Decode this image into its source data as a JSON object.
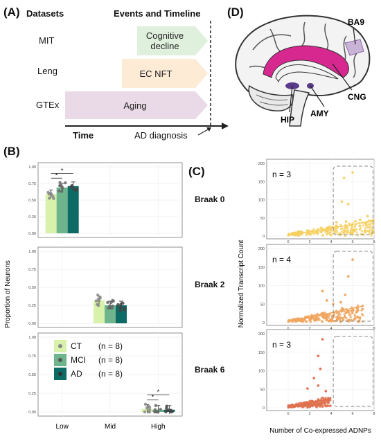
{
  "panel_a": {
    "label": "(A)",
    "datasets_header": "Datasets",
    "events_header": "Events and Timeline",
    "datasets": [
      {
        "name": "MIT",
        "event": "Cognitive decline",
        "color": "#dff0dc"
      },
      {
        "name": "Leng",
        "event": "EC NFT",
        "color": "#fdebd6"
      },
      {
        "name": "GTEx",
        "event": "Aging",
        "color": "#ead9e6"
      }
    ],
    "time_label": "Time",
    "diagnosis_label": "AD diagnosis"
  },
  "panel_d": {
    "label": "(D)",
    "regions": [
      "BA9",
      "CNG",
      "AMY",
      "HIP"
    ]
  },
  "panel_b": {
    "label": "(B)",
    "ylabel": "Proportion of Neurons",
    "legend": [
      {
        "group": "CT",
        "n": "(n = 8)",
        "color": "#d8f2ab"
      },
      {
        "group": "MCI",
        "n": "(n = 8)",
        "color": "#6eb48d"
      },
      {
        "group": "AD",
        "n": "(n = 8)",
        "color": "#0d6b65"
      }
    ]
  },
  "panel_c": {
    "label": "(C)",
    "ylabel": "Normalized Transcript Count",
    "xlabel": "Number of Co-expressed ADNPs",
    "facets": [
      {
        "braak": "Braak 0",
        "n": "n = 3",
        "color": "#f6cf5f"
      },
      {
        "braak": "Braak 2",
        "n": "n = 4",
        "color": "#f0a45d"
      },
      {
        "braak": "Braak 6",
        "n": "n = 3",
        "color": "#e0704e"
      }
    ]
  },
  "chart_data": [
    {
      "type": "bar",
      "categories": [
        "Low",
        "Mid",
        "High"
      ],
      "groups": [
        "CT",
        "MCI",
        "AD"
      ],
      "ylabel": "Proportion of Neurons",
      "ylim": [
        0,
        1
      ],
      "yticks": [
        "0.00",
        "0.25",
        "0.50",
        "0.75",
        "1.00"
      ],
      "series": [
        {
          "name": "CT",
          "values": [
            0.59,
            0.32,
            0.04
          ]
        },
        {
          "name": "MCI",
          "values": [
            0.69,
            0.25,
            0.03
          ]
        },
        {
          "name": "AD",
          "values": [
            0.71,
            0.25,
            0.03
          ]
        }
      ],
      "significance": [
        {
          "category": "Low",
          "pair": [
            "CT",
            "MCI"
          ],
          "label": "*"
        },
        {
          "category": "Low",
          "pair": [
            "CT",
            "AD"
          ],
          "label": "*"
        },
        {
          "category": "High",
          "pair": [
            "CT",
            "MCI"
          ],
          "label": "*"
        },
        {
          "category": "High",
          "pair": [
            "CT",
            "AD"
          ],
          "label": "*"
        }
      ],
      "grid": true
    },
    {
      "type": "scatter",
      "xlabel": "Number of Co-expressed ADNPs",
      "ylabel": "Normalized Transcript Count",
      "xlim": [
        -2,
        8
      ],
      "xticks": [
        "0",
        "2",
        "4",
        "6",
        "8"
      ],
      "ylim": [
        0,
        200
      ],
      "yticks": [
        "0",
        "50",
        "100",
        "150",
        "200"
      ],
      "grid": true,
      "series": [
        {
          "name": "Braak 0",
          "trend": [
            [
              0,
              2
            ],
            [
              8,
              42
            ]
          ],
          "outliers": [
            [
              5.2,
              160
            ],
            [
              6,
              175
            ],
            [
              5,
              95
            ],
            [
              5.6,
              88
            ],
            [
              7.4,
              55
            ],
            [
              6.7,
              45
            ],
            [
              5.4,
              40
            ],
            [
              4.5,
              38
            ]
          ]
        },
        {
          "name": "Braak 2",
          "trend": [
            [
              0,
              2
            ],
            [
              7,
              45
            ]
          ],
          "outliers": [
            [
              6,
              170
            ],
            [
              5.6,
              125
            ],
            [
              5.3,
              75
            ],
            [
              4.9,
              55
            ],
            [
              4.2,
              50
            ],
            [
              6.4,
              40
            ],
            [
              3.2,
              85
            ],
            [
              3.6,
              60
            ]
          ]
        },
        {
          "name": "Braak 6",
          "trend": [
            [
              0,
              1
            ],
            [
              4,
              25
            ]
          ],
          "outliers": [
            [
              3.2,
              185
            ],
            [
              2.8,
              140
            ],
            [
              3,
              105
            ],
            [
              2.4,
              80
            ],
            [
              2.8,
              60
            ],
            [
              1.8,
              52
            ],
            [
              3.5,
              45
            ]
          ]
        }
      ]
    }
  ]
}
